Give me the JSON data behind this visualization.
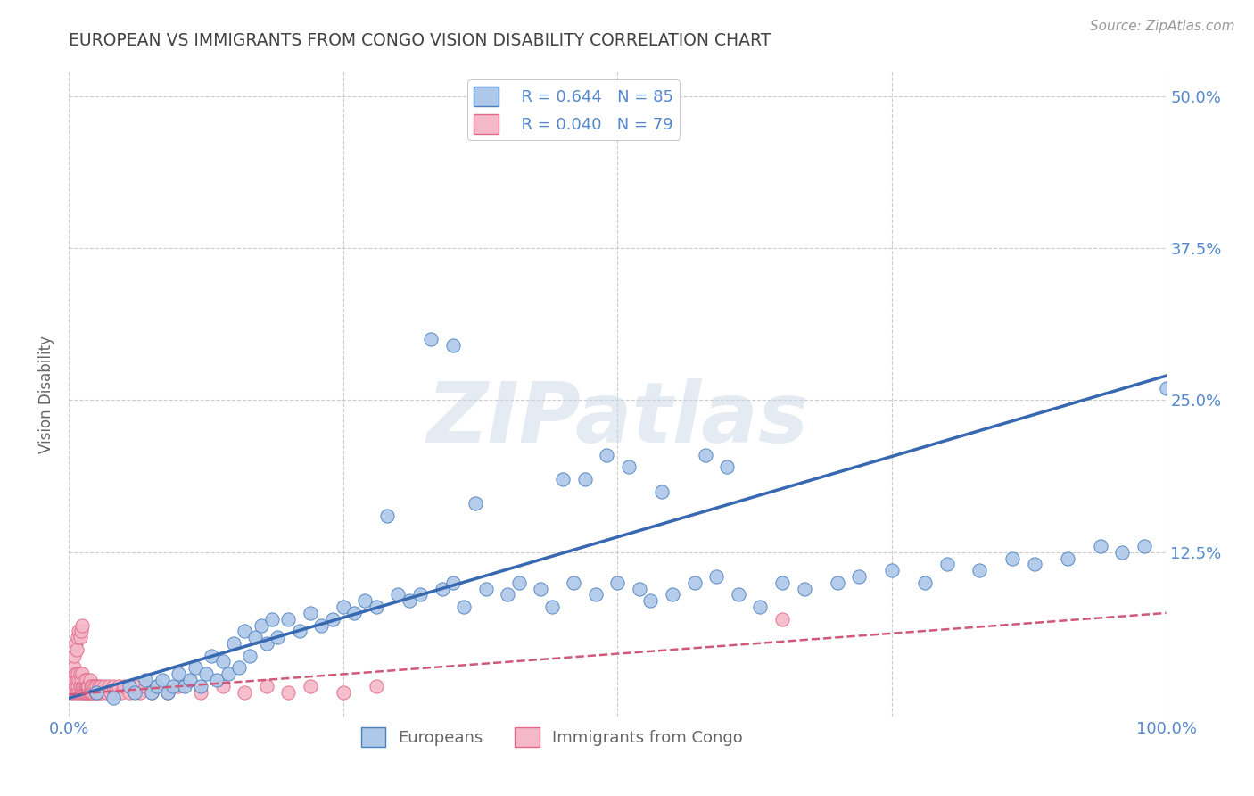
{
  "title": "EUROPEAN VS IMMIGRANTS FROM CONGO VISION DISABILITY CORRELATION CHART",
  "source": "Source: ZipAtlas.com",
  "ylabel": "Vision Disability",
  "watermark": "ZIPatlas",
  "xlim": [
    0.0,
    1.0
  ],
  "ylim": [
    -0.01,
    0.52
  ],
  "euro_R": 0.644,
  "euro_N": 85,
  "congo_R": 0.04,
  "congo_N": 79,
  "euro_color": "#adc8e8",
  "euro_edge_color": "#4a7fc0",
  "congo_color": "#f5b8c8",
  "congo_edge_color": "#e06888",
  "euro_line_color": "#3868b0",
  "congo_line_color": "#d05878",
  "background": "#ffffff",
  "grid_color": "#cccccc",
  "title_color": "#444444",
  "axis_label_color": "#5588cc",
  "euro_line_x0": 0.0,
  "euro_line_y0": 0.005,
  "euro_line_x1": 1.0,
  "euro_line_y1": 0.27,
  "congo_line_x0": 0.0,
  "congo_line_y0": 0.008,
  "congo_line_x1": 1.0,
  "congo_line_y1": 0.075,
  "euro_x": [
    0.025,
    0.04,
    0.055,
    0.06,
    0.07,
    0.075,
    0.08,
    0.085,
    0.09,
    0.095,
    0.1,
    0.105,
    0.11,
    0.115,
    0.12,
    0.125,
    0.13,
    0.135,
    0.14,
    0.145,
    0.15,
    0.155,
    0.16,
    0.165,
    0.17,
    0.175,
    0.18,
    0.185,
    0.19,
    0.2,
    0.21,
    0.22,
    0.23,
    0.24,
    0.25,
    0.26,
    0.27,
    0.28,
    0.3,
    0.31,
    0.32,
    0.34,
    0.35,
    0.36,
    0.38,
    0.4,
    0.41,
    0.43,
    0.44,
    0.46,
    0.48,
    0.5,
    0.52,
    0.53,
    0.55,
    0.57,
    0.59,
    0.61,
    0.63,
    0.65,
    0.67,
    0.7,
    0.72,
    0.75,
    0.78,
    0.8,
    0.83,
    0.86,
    0.88,
    0.91,
    0.94,
    0.96,
    0.98,
    1.0,
    0.35,
    0.47,
    0.49,
    0.51,
    0.54,
    0.58,
    0.37,
    0.29,
    0.33,
    0.45,
    0.6
  ],
  "euro_y": [
    0.01,
    0.005,
    0.015,
    0.01,
    0.02,
    0.01,
    0.015,
    0.02,
    0.01,
    0.015,
    0.025,
    0.015,
    0.02,
    0.03,
    0.015,
    0.025,
    0.04,
    0.02,
    0.035,
    0.025,
    0.05,
    0.03,
    0.06,
    0.04,
    0.055,
    0.065,
    0.05,
    0.07,
    0.055,
    0.07,
    0.06,
    0.075,
    0.065,
    0.07,
    0.08,
    0.075,
    0.085,
    0.08,
    0.09,
    0.085,
    0.09,
    0.095,
    0.1,
    0.08,
    0.095,
    0.09,
    0.1,
    0.095,
    0.08,
    0.1,
    0.09,
    0.1,
    0.095,
    0.085,
    0.09,
    0.1,
    0.105,
    0.09,
    0.08,
    0.1,
    0.095,
    0.1,
    0.105,
    0.11,
    0.1,
    0.115,
    0.11,
    0.12,
    0.115,
    0.12,
    0.13,
    0.125,
    0.13,
    0.26,
    0.295,
    0.185,
    0.205,
    0.195,
    0.175,
    0.205,
    0.165,
    0.155,
    0.3,
    0.185,
    0.195
  ],
  "congo_x": [
    0.002,
    0.003,
    0.004,
    0.005,
    0.005,
    0.006,
    0.006,
    0.007,
    0.007,
    0.008,
    0.008,
    0.009,
    0.009,
    0.01,
    0.01,
    0.011,
    0.011,
    0.012,
    0.012,
    0.013,
    0.013,
    0.014,
    0.014,
    0.015,
    0.015,
    0.016,
    0.016,
    0.017,
    0.017,
    0.018,
    0.018,
    0.019,
    0.019,
    0.02,
    0.02,
    0.021,
    0.022,
    0.023,
    0.024,
    0.025,
    0.026,
    0.027,
    0.028,
    0.029,
    0.03,
    0.032,
    0.034,
    0.036,
    0.038,
    0.04,
    0.042,
    0.045,
    0.048,
    0.05,
    0.055,
    0.06,
    0.065,
    0.07,
    0.075,
    0.08,
    0.09,
    0.1,
    0.12,
    0.14,
    0.16,
    0.18,
    0.2,
    0.22,
    0.25,
    0.28,
    0.005,
    0.006,
    0.007,
    0.008,
    0.009,
    0.01,
    0.011,
    0.012,
    0.65
  ],
  "congo_y": [
    0.01,
    0.015,
    0.01,
    0.02,
    0.03,
    0.015,
    0.025,
    0.01,
    0.02,
    0.015,
    0.025,
    0.01,
    0.02,
    0.015,
    0.025,
    0.01,
    0.02,
    0.015,
    0.025,
    0.01,
    0.015,
    0.01,
    0.02,
    0.015,
    0.01,
    0.015,
    0.02,
    0.01,
    0.015,
    0.01,
    0.015,
    0.01,
    0.02,
    0.015,
    0.01,
    0.015,
    0.01,
    0.015,
    0.01,
    0.015,
    0.01,
    0.015,
    0.01,
    0.015,
    0.01,
    0.015,
    0.01,
    0.015,
    0.01,
    0.015,
    0.01,
    0.015,
    0.01,
    0.015,
    0.01,
    0.015,
    0.01,
    0.015,
    0.01,
    0.015,
    0.01,
    0.015,
    0.01,
    0.015,
    0.01,
    0.015,
    0.01,
    0.015,
    0.01,
    0.015,
    0.04,
    0.05,
    0.045,
    0.055,
    0.06,
    0.055,
    0.06,
    0.065,
    0.07
  ]
}
